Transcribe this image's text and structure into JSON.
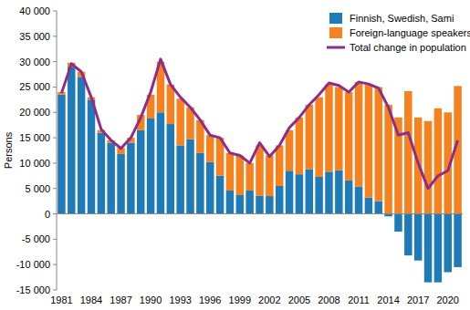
{
  "chart_data": {
    "type": "bar",
    "stacked": true,
    "grid": false,
    "legend": "top-right",
    "y_label": "Persons",
    "categories": [
      "1981",
      null,
      null,
      "1984",
      null,
      null,
      "1987",
      null,
      null,
      "1990",
      null,
      null,
      "1993",
      null,
      null,
      "1996",
      null,
      null,
      "1999",
      null,
      null,
      "2002",
      null,
      null,
      "2005",
      null,
      null,
      "2008",
      null,
      null,
      "2011",
      null,
      null,
      "2014",
      null,
      null,
      "2017",
      null,
      null,
      "2020",
      null
    ],
    "ylim": [
      -15000,
      40000
    ],
    "yticks": [
      {
        "value": -15000,
        "label": "-15 000"
      },
      {
        "value": -10000,
        "label": "-10 000"
      },
      {
        "value": -5000,
        "label": "-5 000"
      },
      0,
      {
        "value": 5000,
        "label": "5 000"
      },
      {
        "value": 10000,
        "label": "10 000"
      },
      {
        "value": 15000,
        "label": "15 000"
      },
      {
        "value": 20000,
        "label": "20 000"
      },
      {
        "value": 25000,
        "label": "25 000"
      },
      {
        "value": 30000,
        "label": "30 000"
      },
      {
        "value": 35000,
        "label": "35 000"
      },
      {
        "value": 40000,
        "label": "40 000"
      }
    ],
    "series": [
      {
        "name": "Finnish, Swedish, Sami",
        "type": "bar",
        "color": "#1f7ab8",
        "values": [
          23500,
          29000,
          27000,
          22500,
          16000,
          14000,
          11800,
          14000,
          16500,
          18800,
          20000,
          17700,
          13500,
          14700,
          12000,
          10200,
          7500,
          4600,
          3700,
          4600,
          3600,
          3500,
          5500,
          8500,
          7800,
          8800,
          7300,
          8300,
          8600,
          6600,
          5400,
          3200,
          2500,
          -500,
          -3500,
          -8200,
          -9200,
          -13500,
          -13500,
          -11500,
          -10500
        ]
      },
      {
        "name": "Foreign-language speakers",
        "type": "bar",
        "color": "#f5821f",
        "values": [
          500,
          800,
          1000,
          500,
          500,
          500,
          1200,
          1000,
          3000,
          4700,
          10000,
          7800,
          9200,
          6300,
          6500,
          5300,
          7500,
          7400,
          7800,
          5400,
          9900,
          8000,
          8000,
          8000,
          11200,
          12700,
          15700,
          17200,
          16400,
          17400,
          20600,
          22300,
          22500,
          21500,
          19000,
          24200,
          19000,
          18300,
          20800,
          20000,
          25200
        ]
      },
      {
        "name": "Total change in population",
        "type": "line",
        "color": "#8e2c8a",
        "values": [
          23800,
          29600,
          28000,
          23000,
          16700,
          14500,
          12900,
          15000,
          19000,
          24000,
          30500,
          25500,
          23000,
          21000,
          18500,
          15500,
          15000,
          12000,
          11500,
          10000,
          14000,
          11300,
          13500,
          17000,
          19000,
          21500,
          23500,
          25800,
          25300,
          24000,
          26000,
          25600,
          24800,
          21000,
          15500,
          16000,
          10000,
          5000,
          7500,
          8500,
          14500
        ]
      }
    ]
  }
}
